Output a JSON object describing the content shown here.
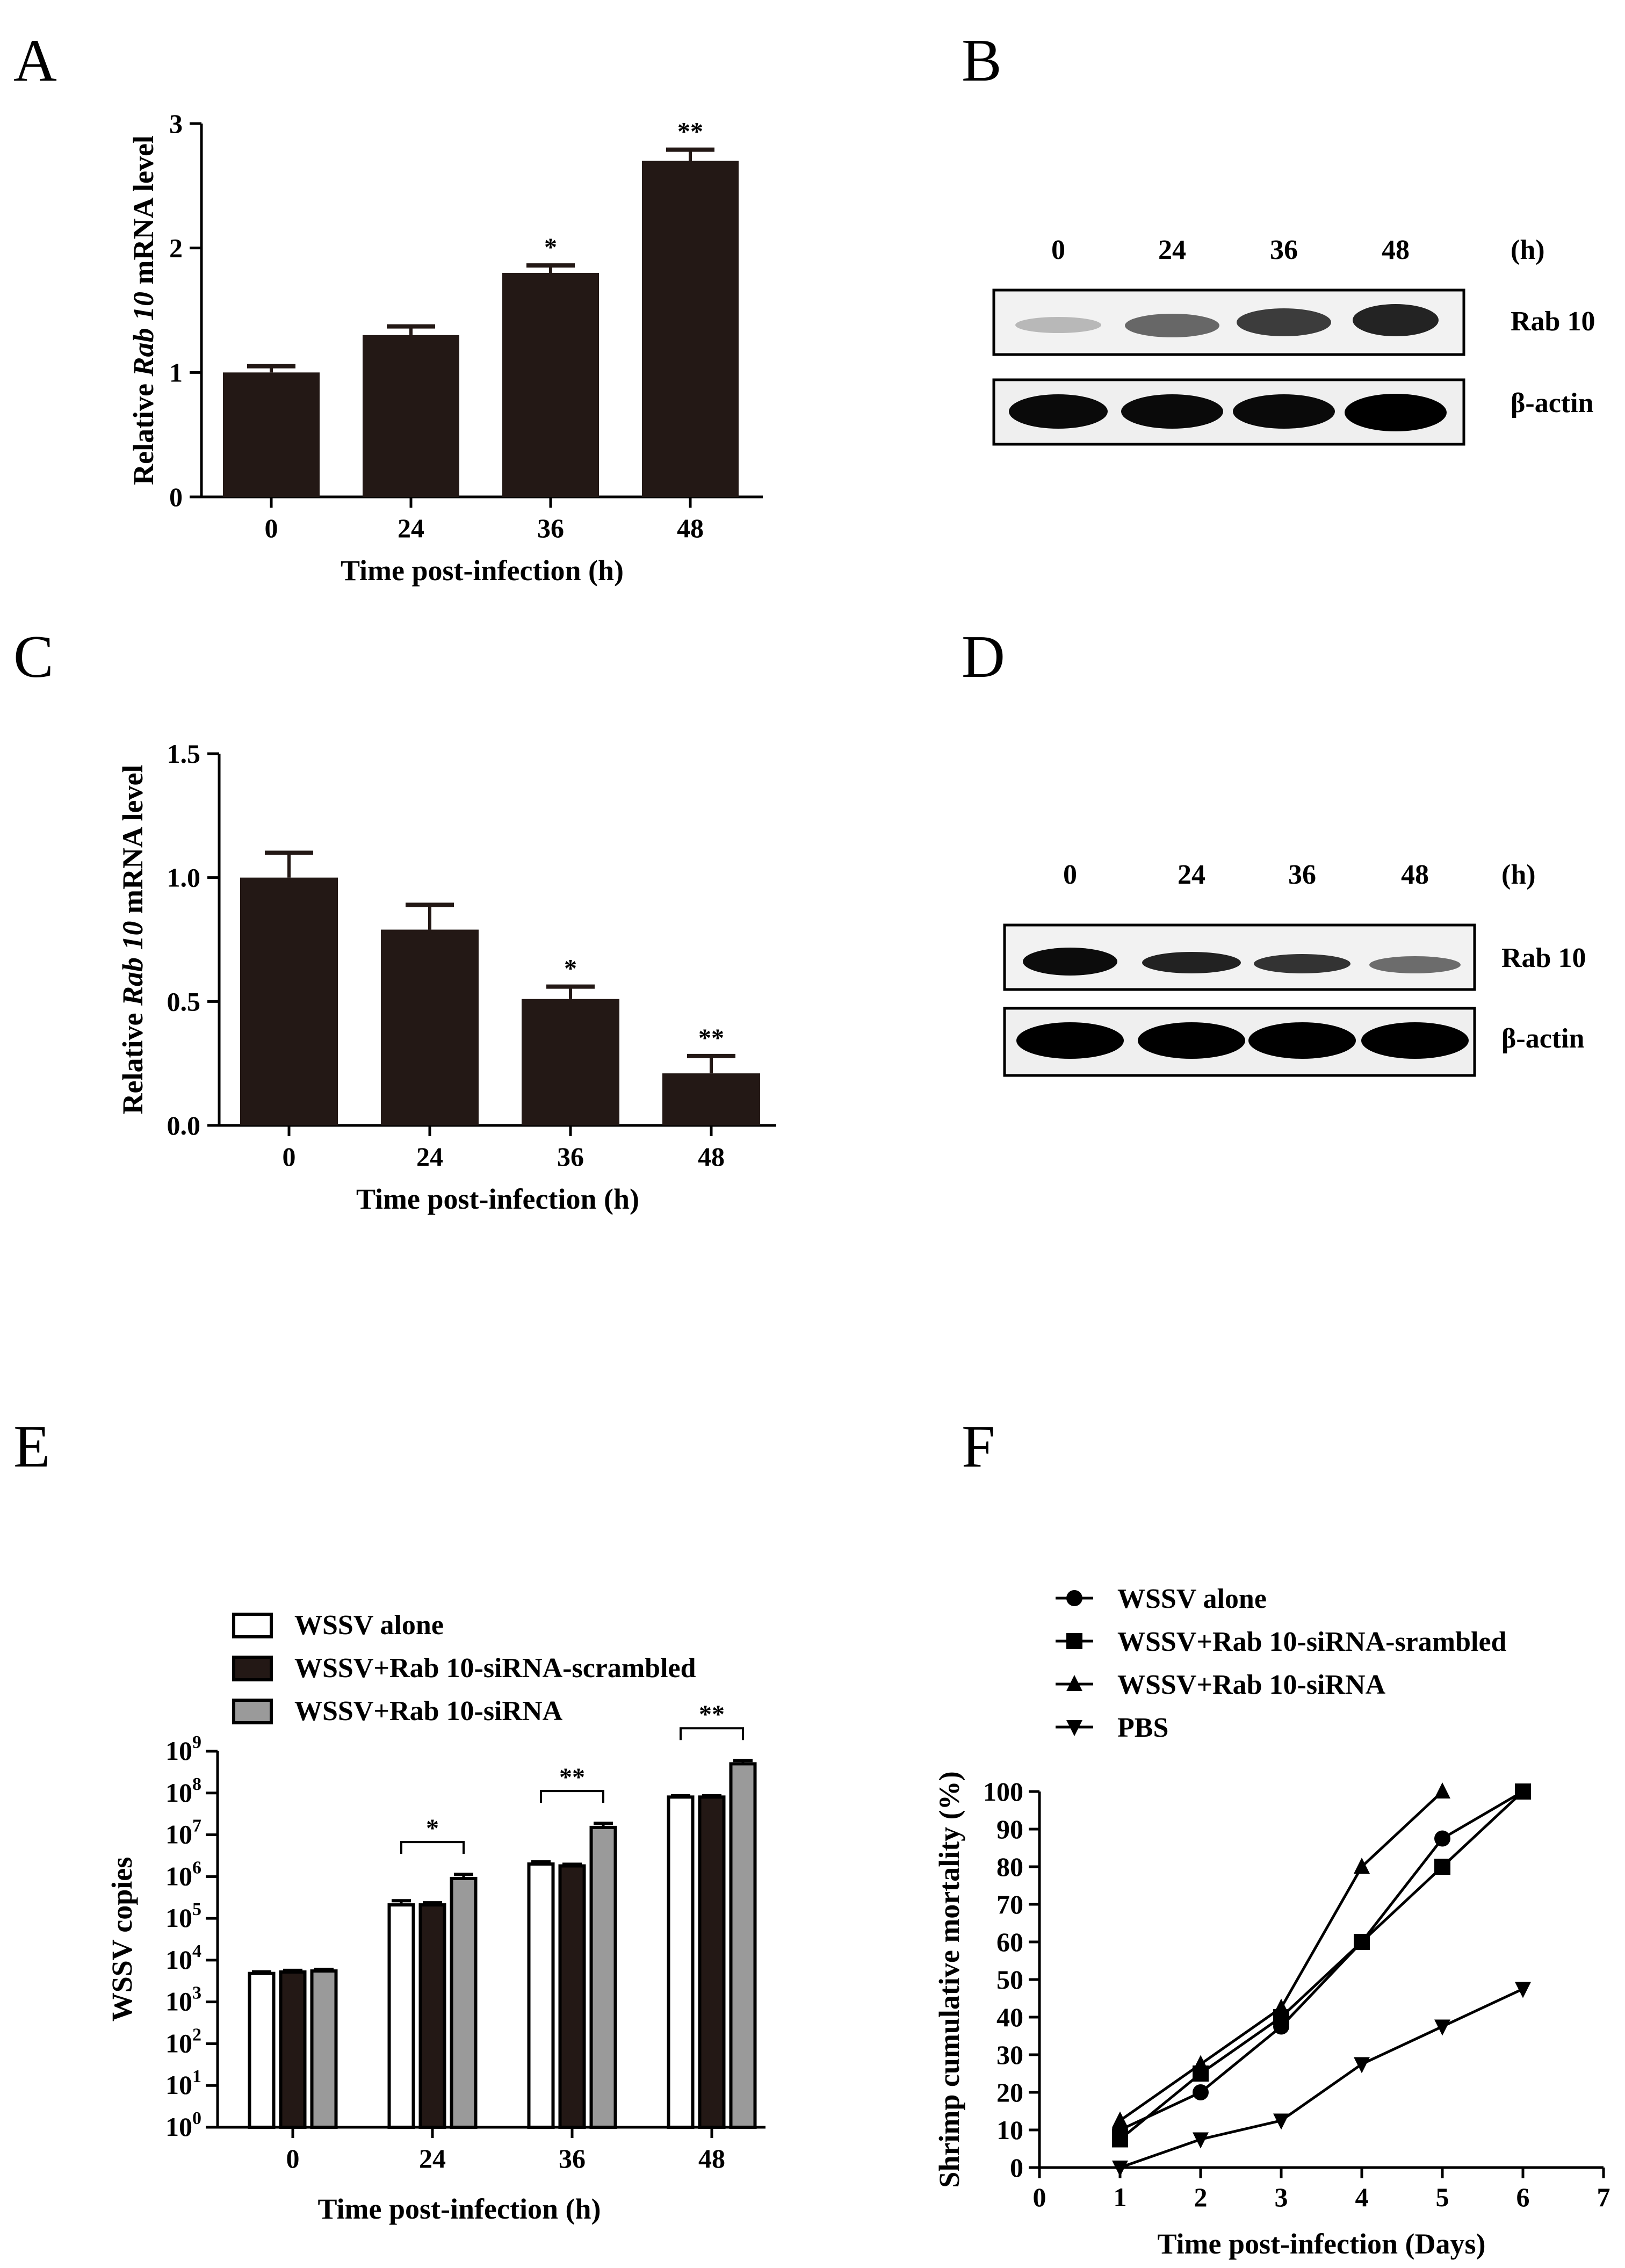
{
  "panels": [
    "A",
    "B",
    "C",
    "D",
    "E",
    "F"
  ],
  "blot_lanes": [
    "0",
    "24",
    "36",
    "48"
  ],
  "blot_unit": "(h)",
  "blot_rows": [
    "Rab 10",
    "β-actin"
  ],
  "colors": {
    "bar_dark": "#231815",
    "bar_white": "#ffffff",
    "bar_gray": "#9a9a9a",
    "axis": "#000000"
  },
  "chart_data": [
    {
      "id": "A",
      "type": "bar",
      "categories": [
        "0",
        "24",
        "36",
        "48"
      ],
      "values": [
        1.0,
        1.3,
        1.8,
        2.7
      ],
      "errors": [
        0.05,
        0.07,
        0.06,
        0.09
      ],
      "significance": [
        "",
        "",
        "*",
        "**"
      ],
      "ylim": [
        0,
        3
      ],
      "yticks": [
        0,
        1,
        2,
        3
      ],
      "ytick_labels": [
        "0",
        "1",
        "2",
        "3"
      ],
      "ylabel_parts": [
        "Relative ",
        "Rab 10",
        " mRNA level"
      ],
      "xlabel": "Time post-infection (h)"
    },
    {
      "id": "C",
      "type": "bar",
      "categories": [
        "0",
        "24",
        "36",
        "48"
      ],
      "values": [
        1.0,
        0.79,
        0.51,
        0.21
      ],
      "errors": [
        0.1,
        0.1,
        0.05,
        0.07
      ],
      "significance": [
        "",
        "",
        "*",
        "**"
      ],
      "ylim": [
        0,
        1.5
      ],
      "yticks": [
        0,
        0.5,
        1.0,
        1.5
      ],
      "ytick_labels": [
        "0.0",
        "0.5",
        "1.0",
        "1.5"
      ],
      "ylabel_parts": [
        "Relative ",
        "Rab 10",
        " mRNA level"
      ],
      "xlabel": "Time post-infection (h)"
    },
    {
      "id": "E",
      "type": "bar",
      "scale": "log",
      "categories": [
        "0",
        "24",
        "36",
        "48"
      ],
      "series": [
        {
          "name": "WSSV alone",
          "color": "#ffffff",
          "values": [
            4800,
            210000,
            2000000,
            80000000
          ],
          "errors_log": [
            0.04,
            0.1,
            0.05,
            0.03
          ]
        },
        {
          "name": "WSSV+Rab 10-siRNA-scrambled",
          "color": "#231815",
          "values": [
            5200,
            210000,
            1800000,
            80000000
          ],
          "errors_log": [
            0.04,
            0.05,
            0.04,
            0.03
          ]
        },
        {
          "name": "WSSV+Rab 10-siRNA",
          "color": "#9a9a9a",
          "values": [
            5500,
            900000,
            15000000,
            500000000
          ],
          "errors_log": [
            0.04,
            0.1,
            0.1,
            0.08
          ]
        }
      ],
      "significance": [
        {
          "category": "24",
          "label": "*"
        },
        {
          "category": "36",
          "label": "**"
        },
        {
          "category": "48",
          "label": "**"
        }
      ],
      "ylim_exp": [
        0,
        9
      ],
      "ytick_base": "10",
      "ytick_exponents": [
        "0",
        "1",
        "2",
        "3",
        "4",
        "5",
        "6",
        "7",
        "8",
        "9"
      ],
      "ylabel": "WSSV copies",
      "xlabel": "Time post-infection (h)"
    },
    {
      "id": "F",
      "type": "line",
      "x": [
        1,
        2,
        3,
        4,
        5,
        6
      ],
      "series": [
        {
          "name": "WSSV alone",
          "marker": "circle",
          "values": [
            10,
            20,
            37.5,
            60,
            87.5,
            100
          ]
        },
        {
          "name": "WSSV+Rab 10-siRNA-srambled",
          "marker": "square",
          "values": [
            7.5,
            25,
            40,
            60,
            80,
            100
          ]
        },
        {
          "name": "WSSV+Rab 10-siRNA",
          "marker": "triangle-up",
          "values": [
            12.5,
            27.5,
            42.5,
            80,
            100,
            null
          ]
        },
        {
          "name": "PBS",
          "marker": "triangle-down",
          "values": [
            0,
            7.5,
            12.5,
            27.5,
            37.5,
            47.5
          ]
        }
      ],
      "xlim": [
        0,
        7
      ],
      "xticks": [
        "0",
        "1",
        "2",
        "3",
        "4",
        "5",
        "6",
        "7"
      ],
      "ylim": [
        0,
        100
      ],
      "yticks": [
        "0",
        "10",
        "20",
        "30",
        "40",
        "50",
        "60",
        "70",
        "80",
        "90",
        "100"
      ],
      "ylabel": "Shrimp cumulative mortality (%)",
      "xlabel": "Time post-infection (Days)"
    }
  ]
}
